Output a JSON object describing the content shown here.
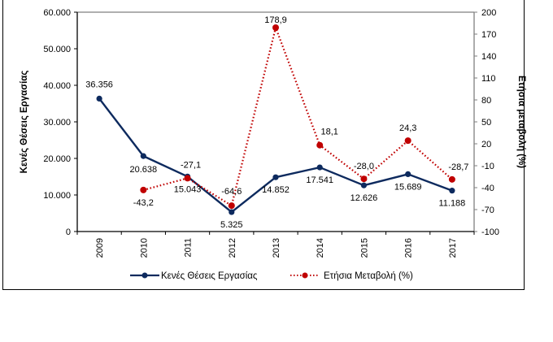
{
  "chart_data": {
    "type": "line",
    "title": "",
    "categories": [
      "2009",
      "2010",
      "2011",
      "2012",
      "2013",
      "2014",
      "2015",
      "2016",
      "2017"
    ],
    "series": [
      {
        "name": "Κενές Θέσεις Εργασίας",
        "axis": "left",
        "style": "solid",
        "color": "#0d2a5e",
        "values": [
          36356,
          20638,
          15043,
          5325,
          14852,
          17541,
          12626,
          15689,
          11188
        ],
        "labels": [
          "36.356",
          "20.638",
          "15.043",
          "5.325",
          "14.852",
          "17.541",
          "12.626",
          "15.689",
          "11.188"
        ]
      },
      {
        "name": "Ετήσια Μεταβολή (%)",
        "axis": "right",
        "style": "dotted",
        "color": "#c00000",
        "values": [
          null,
          -43.2,
          -27.1,
          -64.6,
          178.9,
          18.1,
          -28.0,
          24.3,
          -28.7
        ],
        "labels": [
          null,
          "-43,2",
          "-27,1",
          "-64,6",
          "178,9",
          "18,1",
          "-28,0",
          "24,3",
          "-28,7"
        ]
      }
    ],
    "ylabel": "Κενές Θέσεις Εργασίας",
    "ylim": [
      0,
      60000
    ],
    "yticks": [
      0,
      10000,
      20000,
      30000,
      40000,
      50000,
      60000
    ],
    "ytick_labels": [
      "0",
      "10.000",
      "20.000",
      "30.000",
      "40.000",
      "50.000",
      "60.000"
    ],
    "y2label": "Ετήσια μεταβολή (%)",
    "y2lim": [
      -100,
      200
    ],
    "y2ticks": [
      -100,
      -70,
      -40,
      -10,
      20,
      50,
      80,
      110,
      140,
      170,
      200
    ],
    "y2tick_labels": [
      "-100",
      "-70",
      "-40",
      "-10",
      "20",
      "50",
      "80",
      "110",
      "140",
      "170",
      "200"
    ],
    "xlabel": "",
    "grid": false,
    "legend": "bottom-center"
  }
}
